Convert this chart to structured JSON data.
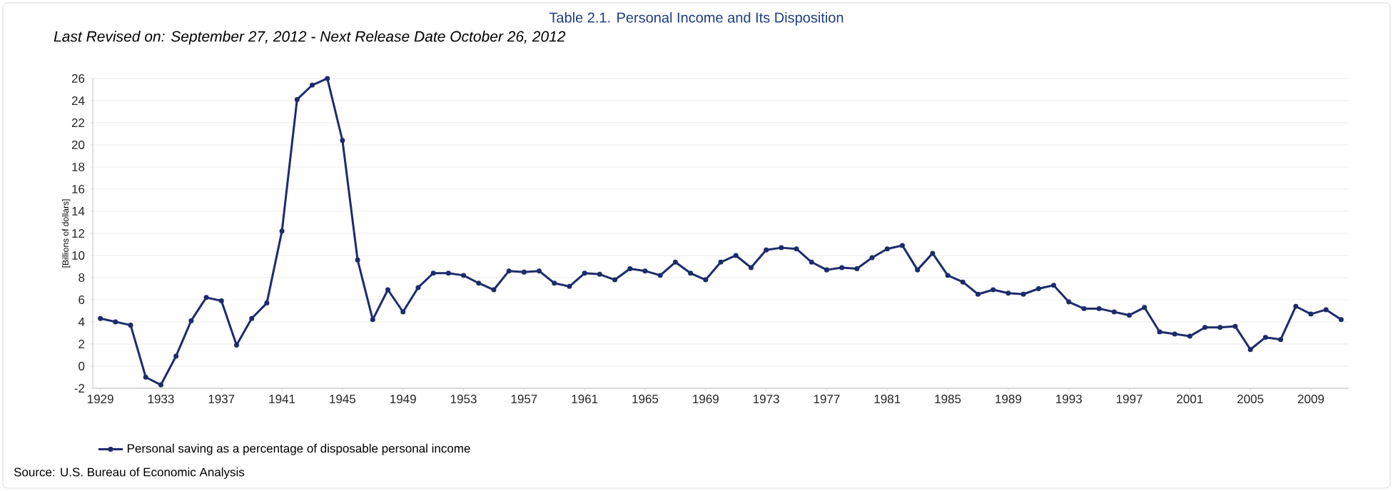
{
  "chart_data": {
    "type": "line",
    "title": "Table 2.1. Personal Income and Its Disposition",
    "subtitle": "Last Revised on: September 27, 2012 - Next Release Date October 26, 2012",
    "ylabel": "[Billions of dollars]",
    "x": [
      1929,
      1930,
      1931,
      1932,
      1933,
      1934,
      1935,
      1936,
      1937,
      1938,
      1939,
      1940,
      1941,
      1942,
      1943,
      1944,
      1945,
      1946,
      1947,
      1948,
      1949,
      1950,
      1951,
      1952,
      1953,
      1954,
      1955,
      1956,
      1957,
      1958,
      1959,
      1960,
      1961,
      1962,
      1963,
      1964,
      1965,
      1966,
      1967,
      1968,
      1969,
      1970,
      1971,
      1972,
      1973,
      1974,
      1975,
      1976,
      1977,
      1978,
      1979,
      1980,
      1981,
      1982,
      1983,
      1984,
      1985,
      1986,
      1987,
      1988,
      1989,
      1990,
      1991,
      1992,
      1993,
      1994,
      1995,
      1996,
      1997,
      1998,
      1999,
      2000,
      2001,
      2002,
      2003,
      2004,
      2005,
      2006,
      2007,
      2008,
      2009,
      2010,
      2011
    ],
    "series": [
      {
        "name": "Personal saving as a percentage of disposable personal income",
        "color": "#1c2c6c",
        "values": [
          4.3,
          4.0,
          3.7,
          -1.0,
          -1.7,
          0.9,
          4.1,
          6.2,
          5.9,
          1.9,
          4.3,
          5.7,
          12.2,
          24.1,
          25.4,
          26.0,
          20.4,
          9.6,
          4.2,
          6.9,
          4.9,
          7.1,
          8.4,
          8.4,
          8.2,
          7.5,
          6.9,
          8.6,
          8.5,
          8.6,
          7.5,
          7.2,
          8.4,
          8.3,
          7.8,
          8.8,
          8.6,
          8.2,
          9.4,
          8.4,
          7.8,
          9.4,
          10.0,
          8.9,
          10.5,
          10.7,
          10.6,
          9.4,
          8.7,
          8.9,
          8.8,
          9.8,
          10.6,
          10.9,
          8.7,
          10.2,
          8.2,
          7.6,
          6.5,
          6.9,
          6.6,
          6.5,
          7.0,
          7.3,
          5.8,
          5.2,
          5.2,
          4.9,
          4.6,
          5.3,
          3.1,
          2.9,
          2.7,
          3.5,
          3.5,
          3.6,
          1.5,
          2.6,
          2.4,
          5.4,
          4.7,
          5.1,
          4.2
        ]
      }
    ],
    "xlim": [
      1928.5,
      2011.5
    ],
    "xticks": [
      1929,
      1933,
      1937,
      1941,
      1945,
      1949,
      1953,
      1957,
      1961,
      1965,
      1969,
      1973,
      1977,
      1981,
      1985,
      1989,
      1993,
      1997,
      2001,
      2005,
      2009
    ],
    "ylim": [
      -2,
      26
    ],
    "yticks": [
      -2,
      0,
      2,
      4,
      6,
      8,
      10,
      12,
      14,
      16,
      18,
      20,
      22,
      24,
      26
    ],
    "grid": "y",
    "legend": "bottom left",
    "marker": "circle",
    "line_style": "solid",
    "annotations": [
      "Source: U.S. Bureau of Economic Analysis"
    ]
  }
}
